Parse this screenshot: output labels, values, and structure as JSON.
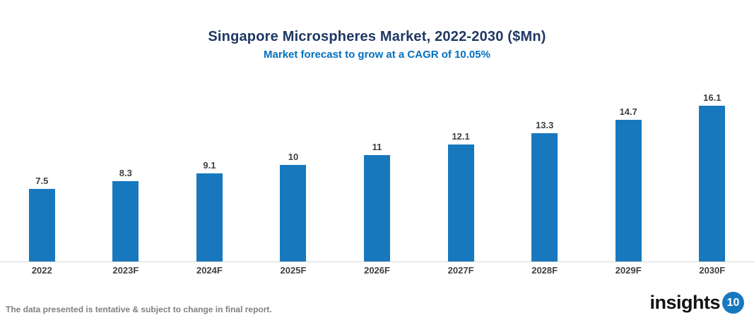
{
  "header": {
    "title": "Singapore Microspheres Market, 2022-2030 ($Mn)",
    "subtitle": "Market forecast to grow at a CAGR of 10.05%"
  },
  "chart_data": {
    "type": "bar",
    "title": "Singapore Microspheres Market, 2022-2030 ($Mn)",
    "subtitle": "Market forecast to grow at a CAGR of 10.05%",
    "categories": [
      "2022",
      "2023F",
      "2024F",
      "2025F",
      "2026F",
      "2027F",
      "2028F",
      "2029F",
      "2030F"
    ],
    "values": [
      7.5,
      8.3,
      9.1,
      10,
      11,
      12.1,
      13.3,
      14.7,
      16.1
    ],
    "value_labels": [
      "7.5",
      "8.3",
      "9.1",
      "10",
      "11",
      "12.1",
      "13.3",
      "14.7",
      "16.1"
    ],
    "xlabel": "",
    "ylabel": "",
    "ylim": [
      0,
      19.8
    ],
    "grid": false,
    "legend": false,
    "bar_color": "#1878BE",
    "label_color": "#404040",
    "axis_line_color": "#D9D9D9"
  },
  "footer": {
    "disclaimer": "The data presented is tentative & subject to change in final report.",
    "logo_text": "insights",
    "logo_badge": "10"
  },
  "colors": {
    "title": "#1F3864",
    "subtitle": "#0070C0",
    "bar": "#1878BE",
    "labels": "#404040",
    "axis_line": "#D9D9D9",
    "footer_text": "#808080",
    "logo_text": "#121212",
    "logo_badge_bg": "#1878BE"
  }
}
